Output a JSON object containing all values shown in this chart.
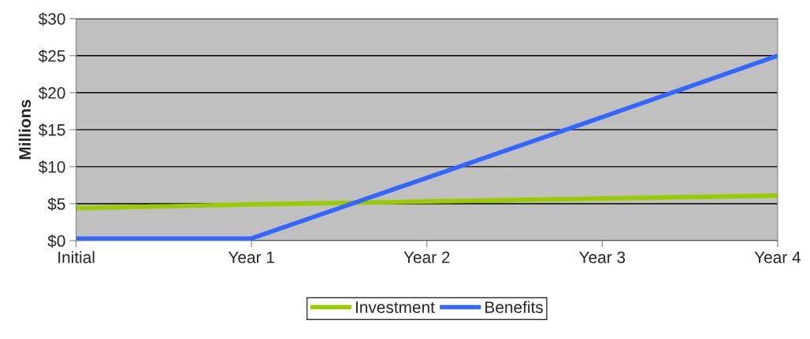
{
  "chart_data": {
    "type": "line",
    "ylabel": "Millions",
    "categories": [
      "Initial",
      "Year 1",
      "Year 2",
      "Year 3",
      "Year 4"
    ],
    "series": [
      {
        "name": "Investment",
        "color": "#99cc00",
        "values": [
          4.4,
          4.9,
          5.3,
          5.7,
          6.1
        ]
      },
      {
        "name": "Benefits",
        "color": "#3366ff",
        "values": [
          0.3,
          0.3,
          8.5,
          16.7,
          25.0
        ]
      }
    ],
    "ylim": [
      0,
      30
    ],
    "yticks": [
      {
        "value": 0,
        "label": "$0"
      },
      {
        "value": 5,
        "label": "$5"
      },
      {
        "value": 10,
        "label": "$10"
      },
      {
        "value": 15,
        "label": "$15"
      },
      {
        "value": 20,
        "label": "$20"
      },
      {
        "value": 25,
        "label": "$25"
      },
      {
        "value": 30,
        "label": "$30"
      }
    ],
    "grid": "y",
    "legend": "bottom",
    "marker": "none",
    "line_style": "solid"
  }
}
